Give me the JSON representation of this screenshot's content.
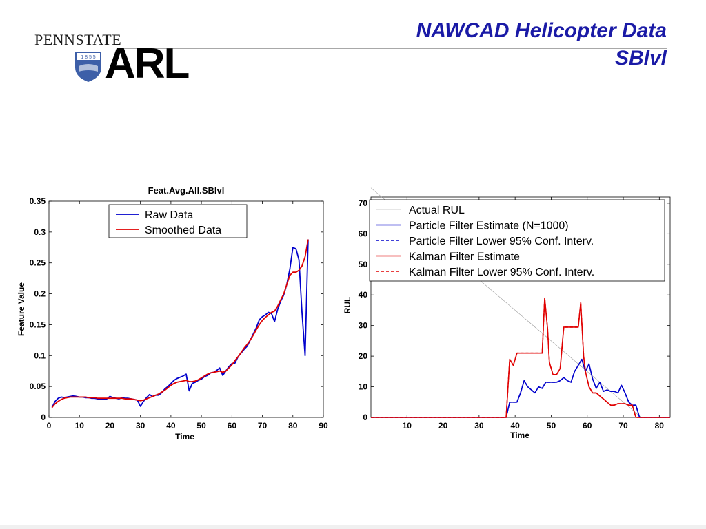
{
  "slide": {
    "title_line1": "NAWCAD Helicopter Data",
    "title_line2": "SBlvl",
    "logo_top": "PENNSTATE",
    "logo_year": "1 8 5 5",
    "logo_main": "ARL"
  },
  "colors": {
    "title": "#1a1aa6",
    "blue": "#0000cc",
    "red": "#e00000",
    "gray": "#999999"
  },
  "chart_data": [
    {
      "type": "line",
      "title": "Feat.Avg.All.SBlvl",
      "xlabel": "Time",
      "ylabel": "Feature Value",
      "xlim": [
        0,
        90
      ],
      "ylim": [
        0,
        0.35
      ],
      "xticks": [
        0,
        10,
        20,
        30,
        40,
        50,
        60,
        70,
        80,
        90
      ],
      "yticks": [
        0,
        0.05,
        0.1,
        0.15,
        0.2,
        0.25,
        0.3,
        0.35
      ],
      "ytick_labels": [
        "0",
        "0.05",
        "0.1",
        "0.15",
        "0.2",
        "0.25",
        "0.3",
        "0.35"
      ],
      "legend_position": "top-center",
      "series": [
        {
          "name": "Raw Data",
          "color": "#0000cc",
          "x": [
            1,
            2,
            3,
            4,
            5,
            6,
            7,
            8,
            9,
            10,
            11,
            12,
            13,
            14,
            15,
            16,
            17,
            18,
            19,
            20,
            21,
            22,
            23,
            24,
            25,
            26,
            27,
            28,
            29,
            30,
            31,
            32,
            33,
            34,
            35,
            36,
            37,
            38,
            39,
            40,
            41,
            42,
            43,
            44,
            45,
            46,
            47,
            48,
            49,
            50,
            51,
            52,
            53,
            54,
            55,
            56,
            57,
            58,
            59,
            60,
            61,
            62,
            63,
            64,
            65,
            66,
            67,
            68,
            69,
            70,
            71,
            72,
            73,
            74,
            75,
            76,
            77,
            78,
            79,
            80,
            81,
            82,
            83,
            84,
            85
          ],
          "y": [
            0.016,
            0.026,
            0.031,
            0.033,
            0.032,
            0.033,
            0.034,
            0.035,
            0.034,
            0.033,
            0.033,
            0.032,
            0.032,
            0.031,
            0.031,
            0.03,
            0.03,
            0.03,
            0.03,
            0.034,
            0.032,
            0.031,
            0.03,
            0.032,
            0.031,
            0.031,
            0.03,
            0.029,
            0.028,
            0.018,
            0.026,
            0.032,
            0.037,
            0.034,
            0.036,
            0.036,
            0.04,
            0.046,
            0.05,
            0.055,
            0.06,
            0.063,
            0.065,
            0.067,
            0.07,
            0.043,
            0.055,
            0.057,
            0.06,
            0.062,
            0.066,
            0.068,
            0.072,
            0.073,
            0.076,
            0.08,
            0.068,
            0.075,
            0.082,
            0.087,
            0.088,
            0.098,
            0.104,
            0.11,
            0.115,
            0.125,
            0.135,
            0.145,
            0.158,
            0.163,
            0.166,
            0.17,
            0.168,
            0.155,
            0.175,
            0.188,
            0.198,
            0.215,
            0.24,
            0.275,
            0.273,
            0.255,
            0.17,
            0.1,
            0.288
          ]
        },
        {
          "name": "Smoothed Data",
          "color": "#e00000",
          "x": [
            1,
            2,
            3,
            4,
            5,
            6,
            7,
            8,
            9,
            10,
            11,
            12,
            13,
            14,
            15,
            16,
            17,
            18,
            19,
            20,
            21,
            22,
            23,
            24,
            25,
            26,
            27,
            28,
            29,
            30,
            31,
            32,
            33,
            34,
            35,
            36,
            37,
            38,
            39,
            40,
            41,
            42,
            43,
            44,
            45,
            46,
            47,
            48,
            49,
            50,
            51,
            52,
            53,
            54,
            55,
            56,
            57,
            58,
            59,
            60,
            61,
            62,
            63,
            64,
            65,
            66,
            67,
            68,
            69,
            70,
            71,
            72,
            73,
            74,
            75,
            76,
            77,
            78,
            79,
            80,
            81,
            82,
            83,
            84,
            85
          ],
          "y": [
            0.016,
            0.022,
            0.026,
            0.029,
            0.031,
            0.032,
            0.033,
            0.033,
            0.033,
            0.033,
            0.033,
            0.033,
            0.032,
            0.032,
            0.032,
            0.031,
            0.031,
            0.031,
            0.031,
            0.031,
            0.031,
            0.031,
            0.031,
            0.031,
            0.03,
            0.03,
            0.03,
            0.029,
            0.028,
            0.027,
            0.028,
            0.03,
            0.032,
            0.034,
            0.036,
            0.038,
            0.041,
            0.044,
            0.048,
            0.052,
            0.055,
            0.057,
            0.058,
            0.059,
            0.06,
            0.058,
            0.058,
            0.059,
            0.061,
            0.064,
            0.067,
            0.07,
            0.072,
            0.073,
            0.074,
            0.075,
            0.073,
            0.075,
            0.08,
            0.085,
            0.092,
            0.098,
            0.105,
            0.112,
            0.118,
            0.125,
            0.133,
            0.142,
            0.15,
            0.157,
            0.162,
            0.166,
            0.17,
            0.172,
            0.18,
            0.19,
            0.2,
            0.215,
            0.23,
            0.235,
            0.235,
            0.238,
            0.245,
            0.26,
            0.288
          ]
        }
      ]
    },
    {
      "type": "line",
      "title": "",
      "xlabel": "Time",
      "ylabel": "RUL",
      "xlim": [
        0,
        83
      ],
      "ylim": [
        0,
        72
      ],
      "xticks": [
        10,
        20,
        30,
        40,
        50,
        60,
        70,
        80
      ],
      "yticks": [
        0,
        10,
        20,
        30,
        40,
        50,
        60,
        70
      ],
      "legend_position": "top-right",
      "series": [
        {
          "name": "Actual RUL",
          "color": "#999999",
          "dash": "solid-thin",
          "x": [
            0,
            75
          ],
          "y": [
            75,
            0
          ]
        },
        {
          "name": "Particle Filter Estimate (N=1000)",
          "color": "#0000cc",
          "dash": "solid",
          "x": [
            0,
            10,
            20,
            30,
            37.5,
            38.5,
            39.5,
            40.5,
            41.5,
            42.5,
            43.5,
            44.5,
            45.5,
            46.5,
            47.5,
            48.5,
            49.5,
            50.5,
            51.5,
            52.5,
            53.5,
            54.5,
            55.5,
            56.5,
            57.5,
            58.5,
            59.5,
            60.5,
            61.5,
            62.5,
            63.5,
            64.5,
            65.5,
            66.5,
            67.5,
            68.5,
            69.5,
            70.5,
            71.5,
            72.5,
            73.5,
            74.5,
            75.5,
            83
          ],
          "y": [
            0,
            0,
            0,
            0,
            0,
            5,
            5,
            5,
            8,
            12,
            10,
            9,
            8,
            10,
            9.5,
            11.5,
            11.5,
            11.5,
            11.5,
            12,
            13,
            12,
            11.5,
            15,
            17,
            19,
            15,
            17.5,
            12.5,
            9.5,
            11.5,
            8.5,
            9,
            8.5,
            8.5,
            8,
            10.5,
            8,
            5,
            4,
            4,
            0,
            0,
            0
          ]
        },
        {
          "name": "Particle Filter Lower 95% Conf. Interv.",
          "color": "#0000cc",
          "dash": "dashed",
          "x": [
            0,
            10,
            20,
            30,
            37.5,
            38.5,
            39.5,
            40.5,
            41.5,
            42.5,
            43.5,
            44.5,
            45.5,
            46.5,
            47.5,
            48.5,
            49.5,
            50.5,
            51.5,
            52.5,
            53.5,
            54.5,
            55.5,
            56.5,
            57.5,
            58.5,
            59.5,
            60.5,
            61.5,
            62.5,
            63.5,
            64.5,
            65.5,
            66.5,
            67.5,
            68.5,
            69.5,
            70.5,
            71.5,
            72.5,
            73.5,
            74.5,
            75.5,
            83
          ],
          "y": [
            0,
            0,
            0,
            0,
            0,
            5,
            5,
            5,
            8,
            12,
            10,
            9,
            8,
            10,
            9.5,
            11.5,
            11.5,
            11.5,
            11.5,
            12,
            13,
            12,
            11.5,
            15,
            17,
            19,
            15,
            17.5,
            12.5,
            9.5,
            11.5,
            8.5,
            9,
            8.5,
            8.5,
            8,
            10.5,
            8,
            5,
            4,
            4,
            0,
            0,
            0
          ]
        },
        {
          "name": "Kalman Filter Estimate",
          "color": "#e00000",
          "dash": "solid",
          "x": [
            0,
            10,
            20,
            30,
            37.5,
            38.5,
            39.5,
            40.5,
            41.5,
            42.5,
            43.5,
            44.5,
            45.5,
            46.5,
            47.5,
            48.2,
            49,
            49.5,
            50.5,
            51.5,
            52.5,
            53.5,
            54.5,
            55.5,
            56.5,
            57.5,
            58.2,
            59,
            59.5,
            60.5,
            61.5,
            62.5,
            63.5,
            64.5,
            65.5,
            66.5,
            67.5,
            68.5,
            69.5,
            70.5,
            71.5,
            72.5,
            73.5,
            74.5,
            75.5,
            83
          ],
          "y": [
            0,
            0,
            0,
            0,
            0,
            19,
            17,
            21,
            21,
            21,
            21,
            21,
            21,
            21,
            21,
            39,
            29,
            18,
            14,
            14,
            16,
            29.5,
            29.5,
            29.5,
            29.5,
            29.5,
            37.5,
            20,
            15,
            10,
            8,
            8,
            7,
            6,
            5,
            4,
            4,
            4.5,
            4.5,
            4.5,
            4,
            4,
            0,
            0,
            0,
            0
          ]
        },
        {
          "name": "Kalman Filter Lower 95% Conf. Interv.",
          "color": "#e00000",
          "dash": "dashed",
          "x": [
            0,
            10,
            20,
            30,
            37.5,
            38.5,
            39.5,
            40.5,
            41.5,
            42.5,
            43.5,
            44.5,
            45.5,
            46.5,
            47.5,
            48.2,
            49,
            49.5,
            50.5,
            51.5,
            52.5,
            53.5,
            54.5,
            55.5,
            56.5,
            57.5,
            58.2,
            59,
            59.5,
            60.5,
            61.5,
            62.5,
            63.5,
            64.5,
            65.5,
            66.5,
            67.5,
            68.5,
            69.5,
            70.5,
            71.5,
            72.5,
            73.5,
            74.5,
            75.5,
            83
          ],
          "y": [
            0,
            0,
            0,
            0,
            0,
            19,
            17,
            21,
            21,
            21,
            21,
            21,
            21,
            21,
            21,
            39,
            29,
            18,
            14,
            14,
            16,
            29.5,
            29.5,
            29.5,
            29.5,
            29.5,
            37.5,
            20,
            15,
            10,
            8,
            8,
            7,
            6,
            5,
            4,
            4,
            4.5,
            4.5,
            4.5,
            4,
            4,
            0,
            0,
            0,
            0
          ]
        }
      ]
    }
  ]
}
